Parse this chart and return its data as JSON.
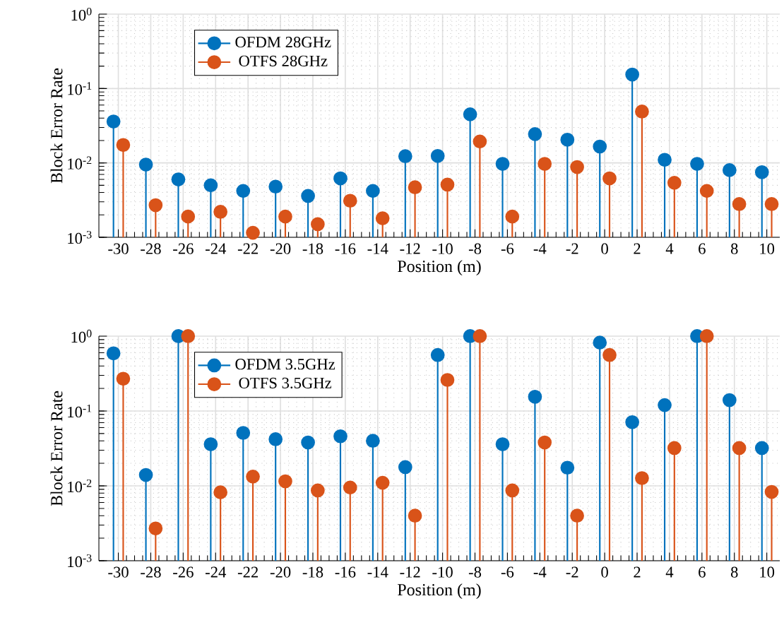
{
  "chart_data": [
    {
      "type": "lollipop",
      "xlabel": "Position (m)",
      "ylabel": "Block Error Rate",
      "log": "y",
      "grid": true,
      "legend": "top left",
      "marker": "circle",
      "xlim": [
        -31.2,
        10.8
      ],
      "xticks": [
        -30,
        -28,
        -26,
        -24,
        -22,
        -20,
        -18,
        -16,
        -14,
        -12,
        -10,
        -8,
        -6,
        -4,
        -2,
        0,
        2,
        4,
        6,
        8,
        10
      ],
      "ylim": [
        0.001,
        1
      ],
      "yticks": [
        {
          "value": 0.001,
          "label": "10$^{-3}$"
        },
        {
          "value": 0.01,
          "label": "10$^{-2}$"
        },
        {
          "value": 0.1,
          "label": "10$^{-1}$"
        },
        {
          "value": 1,
          "label": "10$^{0}$"
        }
      ],
      "series": [
        {
          "name": "OFDM 28GHz",
          "color": "#0072bd",
          "x": [
            -30.3,
            -28.3,
            -26.3,
            -24.3,
            -22.3,
            -20.3,
            -18.3,
            -16.3,
            -14.3,
            -12.3,
            -10.3,
            -8.3,
            -6.3,
            -4.3,
            -2.3,
            -0.3,
            1.7,
            3.7,
            5.7,
            7.7,
            9.7
          ],
          "values": [
            0.036,
            0.0095,
            0.006,
            0.005,
            0.0042,
            0.0048,
            0.0036,
            0.0062,
            0.0042,
            0.0123,
            0.0124,
            0.045,
            0.0097,
            0.0244,
            0.0205,
            0.0166,
            0.154,
            0.011,
            0.0097,
            0.008,
            0.0075
          ]
        },
        {
          "name": "OTFS 28GHz",
          "color": "#d95319",
          "x": [
            -29.7,
            -27.7,
            -25.7,
            -23.7,
            -21.7,
            -19.7,
            -17.7,
            -15.7,
            -13.7,
            -11.7,
            -9.7,
            -7.7,
            -5.7,
            -3.7,
            -1.7,
            0.3,
            2.3,
            4.3,
            6.3,
            8.3,
            10.3
          ],
          "values": [
            0.0174,
            0.0027,
            0.0019,
            0.0022,
            0.00115,
            0.0019,
            0.0015,
            0.0031,
            0.0018,
            0.0047,
            0.0051,
            0.0194,
            0.0019,
            0.0097,
            0.0088,
            0.0062,
            0.049,
            0.0054,
            0.0042,
            0.0028,
            0.0028
          ]
        }
      ]
    },
    {
      "type": "lollipop",
      "xlabel": "Position (m)",
      "ylabel": "Block Error Rate",
      "log": "y",
      "grid": true,
      "legend": "top left",
      "marker": "circle",
      "xlim": [
        -31.2,
        10.8
      ],
      "xticks": [
        -30,
        -28,
        -26,
        -24,
        -22,
        -20,
        -18,
        -16,
        -14,
        -12,
        -10,
        -8,
        -6,
        -4,
        -2,
        0,
        2,
        4,
        6,
        8,
        10
      ],
      "ylim": [
        0.001,
        1
      ],
      "yticks": [
        {
          "value": 0.001,
          "label": "10$^{-3}$"
        },
        {
          "value": 0.01,
          "label": "10$^{-2}$"
        },
        {
          "value": 0.1,
          "label": "10$^{-1}$"
        },
        {
          "value": 1,
          "label": "10$^{0}$"
        }
      ],
      "series": [
        {
          "name": "OFDM 3.5GHz",
          "color": "#0072bd",
          "x": [
            -30.3,
            -28.3,
            -26.3,
            -24.3,
            -22.3,
            -20.3,
            -18.3,
            -16.3,
            -14.3,
            -12.3,
            -10.3,
            -8.3,
            -6.3,
            -4.3,
            -2.3,
            -0.3,
            1.7,
            3.7,
            5.7,
            7.7,
            9.7
          ],
          "values": [
            0.59,
            0.014,
            1,
            0.036,
            0.051,
            0.042,
            0.038,
            0.046,
            0.04,
            0.0178,
            0.56,
            1,
            0.036,
            0.155,
            0.0175,
            0.82,
            0.071,
            0.12,
            1,
            0.14,
            0.032
          ]
        },
        {
          "name": "OTFS 3.5GHz",
          "color": "#d95319",
          "x": [
            -29.7,
            -27.7,
            -25.7,
            -23.7,
            -21.7,
            -19.7,
            -17.7,
            -15.7,
            -13.7,
            -11.7,
            -9.7,
            -7.7,
            -5.7,
            -3.7,
            -1.7,
            0.3,
            2.3,
            4.3,
            6.3,
            8.3,
            10.3
          ],
          "values": [
            0.27,
            0.0027,
            1,
            0.0082,
            0.0133,
            0.0115,
            0.0087,
            0.0095,
            0.011,
            0.004,
            0.26,
            1,
            0.0087,
            0.038,
            0.004,
            0.56,
            0.0127,
            0.032,
            1,
            0.032,
            0.0083
          ]
        }
      ]
    }
  ]
}
